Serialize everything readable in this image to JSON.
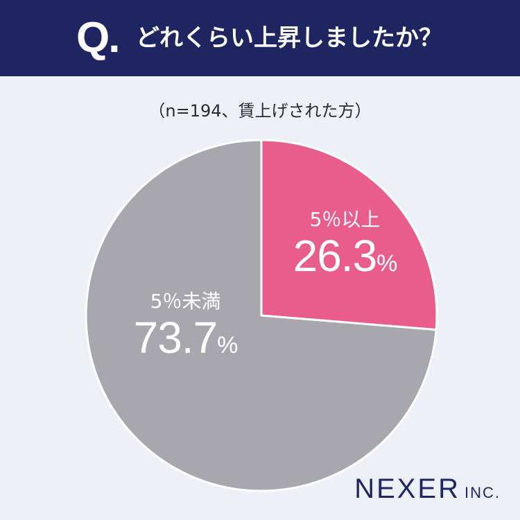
{
  "header": {
    "q_mark": "Q.",
    "question": "どれくらい上昇しましたか？"
  },
  "subtitle": "（n=194、賃上げされた方）",
  "chart_data": {
    "type": "pie",
    "slices": [
      {
        "label": "5％以上",
        "value": 26.3,
        "value_text": "26.3",
        "unit": "%",
        "color": "#e95d8c"
      },
      {
        "label": "5％未満",
        "value": 73.7,
        "value_text": "73.7",
        "unit": "%",
        "color": "#a8a7ad"
      }
    ],
    "start": "12 o'clock",
    "direction": "clockwise",
    "separator_color": "#ffffff"
  },
  "logo": {
    "name": "NEXER",
    "suffix": "INC."
  },
  "colors": {
    "header_bg": "#1e2560",
    "page_bg": "#eef0f8",
    "accent": "#e95d8c",
    "neutral": "#a8a7ad"
  }
}
